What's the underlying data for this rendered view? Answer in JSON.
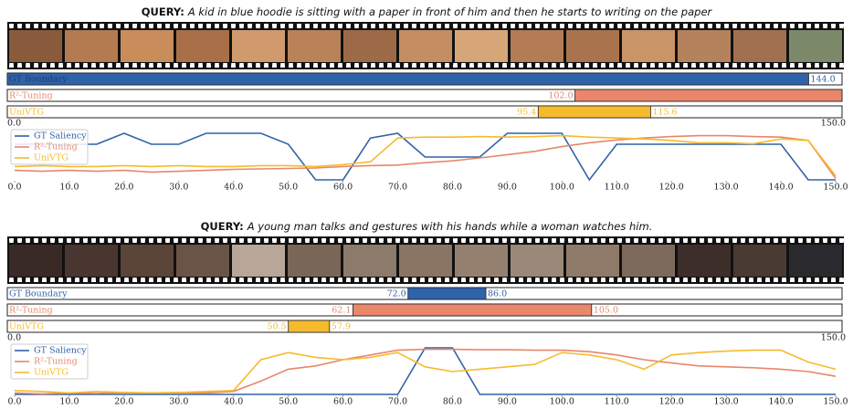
{
  "chart_data": [
    {
      "type": "line",
      "query_label": "QUERY:",
      "query": "A kid in blue hoodie is sitting with a paper in front of him and then he starts to writing on the paper",
      "boundaries": [
        {
          "name": "GT Boundary",
          "color": "#2f62a8",
          "values": [
            0,
            144
          ],
          "value_labels": [
            null,
            "144.0"
          ]
        },
        {
          "name": "R²-Tuning",
          "color": "#e8876a",
          "values": [
            102,
            150
          ],
          "value_labels": [
            "102.0",
            null
          ]
        },
        {
          "name": "UniVTG",
          "color": "#f6bb2c",
          "values": [
            95.4,
            115.6
          ],
          "value_labels": [
            "95.4",
            "115.6"
          ]
        }
      ],
      "x": [
        0,
        5,
        10,
        15,
        20,
        25,
        30,
        35,
        40,
        45,
        50,
        55,
        60,
        65,
        70,
        75,
        80,
        85,
        90,
        95,
        100,
        105,
        110,
        115,
        120,
        125,
        130,
        135,
        140,
        145,
        150
      ],
      "series": [
        {
          "name": "GT Saliency",
          "color": "#2f62a8",
          "values": [
            0.77,
            0.77,
            0.77,
            0.77,
            1.0,
            0.77,
            0.77,
            1.0,
            1.0,
            1.0,
            0.77,
            0.02,
            0.02,
            0.9,
            1.0,
            0.5,
            0.5,
            0.5,
            1.0,
            1.0,
            1.0,
            0.02,
            0.77,
            0.77,
            0.77,
            0.77,
            0.77,
            0.77,
            0.77,
            0.02,
            0.02
          ]
        },
        {
          "name": "R²-Tuning",
          "color": "#e8876a",
          "values": [
            0.22,
            0.2,
            0.22,
            0.2,
            0.22,
            0.18,
            0.2,
            0.22,
            0.24,
            0.25,
            0.26,
            0.27,
            0.3,
            0.32,
            0.33,
            0.38,
            0.42,
            0.48,
            0.55,
            0.62,
            0.72,
            0.8,
            0.86,
            0.9,
            0.93,
            0.95,
            0.95,
            0.93,
            0.92,
            0.85,
            0.05
          ]
        },
        {
          "name": "UniVTG",
          "color": "#f6bb2c",
          "values": [
            0.3,
            0.32,
            0.3,
            0.3,
            0.32,
            0.3,
            0.32,
            0.3,
            0.3,
            0.32,
            0.32,
            0.3,
            0.34,
            0.4,
            0.9,
            0.92,
            0.92,
            0.93,
            0.92,
            0.93,
            0.95,
            0.92,
            0.9,
            0.88,
            0.85,
            0.8,
            0.8,
            0.78,
            0.88,
            0.85,
            0.1
          ]
        }
      ],
      "xlim": [
        0,
        150
      ],
      "ylim": [
        0,
        1
      ],
      "xticks": [
        {
          "value": 0,
          "label": "0.0"
        },
        {
          "value": 10,
          "label": "10.0"
        },
        {
          "value": 20,
          "label": "20.0"
        },
        {
          "value": 30,
          "label": "30.0"
        },
        {
          "value": 40,
          "label": "40.0"
        },
        {
          "value": 50,
          "label": "50.0"
        },
        {
          "value": 60,
          "label": "60.0"
        },
        {
          "value": 70,
          "label": "70.0"
        },
        {
          "value": 80,
          "label": "80.0"
        },
        {
          "value": 90,
          "label": "90.0"
        },
        {
          "value": 100,
          "label": "100.0"
        },
        {
          "value": 110,
          "label": "110.0"
        },
        {
          "value": 120,
          "label": "120.0"
        },
        {
          "value": 130,
          "label": "130.0"
        },
        {
          "value": 140,
          "label": "140.0"
        },
        {
          "value": 150,
          "label": "150.0"
        }
      ],
      "legend": "upper left"
    },
    {
      "type": "line",
      "query_label": "QUERY:",
      "query": "A young man talks and gestures with his hands while a woman watches him.",
      "boundaries": [
        {
          "name": "GT Boundary",
          "color": "#2f62a8",
          "values": [
            72,
            86
          ],
          "value_labels": [
            "72.0",
            "86.0"
          ]
        },
        {
          "name": "R²-Tuning",
          "color": "#e8876a",
          "values": [
            62.1,
            105
          ],
          "value_labels": [
            "62.1",
            "105.0"
          ]
        },
        {
          "name": "UniVTG",
          "color": "#f6bb2c",
          "values": [
            50.5,
            57.9
          ],
          "value_labels": [
            "50.5",
            "57.9"
          ]
        }
      ],
      "x": [
        0,
        5,
        10,
        15,
        20,
        25,
        30,
        35,
        40,
        45,
        50,
        55,
        60,
        65,
        70,
        75,
        80,
        85,
        90,
        95,
        100,
        105,
        110,
        115,
        120,
        125,
        130,
        135,
        140,
        145,
        150
      ],
      "series": [
        {
          "name": "GT Saliency",
          "color": "#2f62a8",
          "values": [
            0.02,
            0.02,
            0.02,
            0.02,
            0.02,
            0.02,
            0.02,
            0.02,
            0.02,
            0.02,
            0.02,
            0.02,
            0.02,
            0.02,
            0.02,
            1.0,
            1.0,
            0.02,
            0.02,
            0.02,
            0.02,
            0.02,
            0.02,
            0.02,
            0.02,
            0.02,
            0.02,
            0.02,
            0.02,
            0.02,
            0.02
          ]
        },
        {
          "name": "R²-Tuning",
          "color": "#e8876a",
          "values": [
            0.05,
            0.03,
            0.05,
            0.04,
            0.06,
            0.05,
            0.06,
            0.05,
            0.08,
            0.3,
            0.55,
            0.62,
            0.75,
            0.85,
            0.95,
            0.97,
            0.97,
            0.96,
            0.96,
            0.95,
            0.95,
            0.92,
            0.85,
            0.75,
            0.68,
            0.62,
            0.6,
            0.58,
            0.55,
            0.5,
            0.4
          ]
        },
        {
          "name": "UniVTG",
          "color": "#f6bb2c",
          "values": [
            0.1,
            0.08,
            0.05,
            0.08,
            0.06,
            0.05,
            0.06,
            0.08,
            0.1,
            0.75,
            0.9,
            0.8,
            0.75,
            0.8,
            0.9,
            0.6,
            0.5,
            0.55,
            0.6,
            0.65,
            0.9,
            0.85,
            0.75,
            0.55,
            0.85,
            0.9,
            0.93,
            0.95,
            0.95,
            0.7,
            0.55
          ]
        }
      ],
      "xlim": [
        0,
        150
      ],
      "ylim": [
        0,
        1
      ],
      "xticks": [
        {
          "value": 0,
          "label": "0.0"
        },
        {
          "value": 10,
          "label": "10.0"
        },
        {
          "value": 20,
          "label": "20.0"
        },
        {
          "value": 30,
          "label": "30.0"
        },
        {
          "value": 40,
          "label": "40.0"
        },
        {
          "value": 50,
          "label": "50.0"
        },
        {
          "value": 60,
          "label": "60.0"
        },
        {
          "value": 70,
          "label": "70.0"
        },
        {
          "value": 80,
          "label": "80.0"
        },
        {
          "value": 90,
          "label": "90.0"
        },
        {
          "value": 100,
          "label": "100.0"
        },
        {
          "value": 110,
          "label": "110.0"
        },
        {
          "value": 120,
          "label": "120.0"
        },
        {
          "value": 130,
          "label": "130.0"
        },
        {
          "value": 140,
          "label": "140.0"
        },
        {
          "value": 150,
          "label": "150.0"
        }
      ],
      "legend": "upper left"
    }
  ]
}
